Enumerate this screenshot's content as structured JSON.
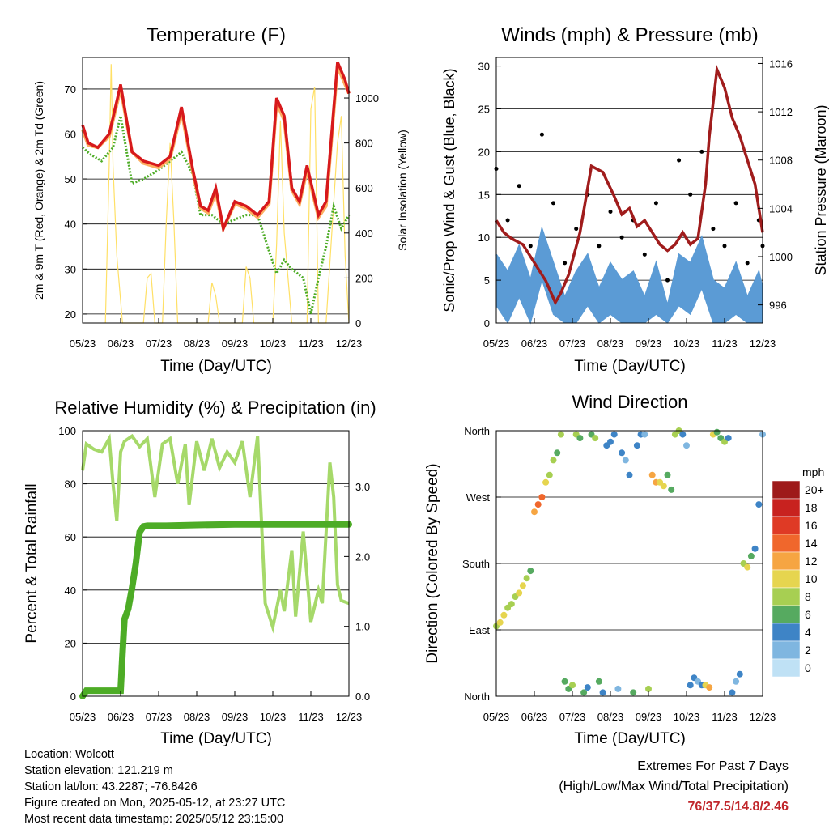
{
  "footer": {
    "location": "Location: Wolcott",
    "elevation": "Station elevation: 121.219 m",
    "latlon": "Station lat/lon: 43.2287; -76.8426",
    "created": "Figure created on Mon, 2025-05-12, at 23:27 UTC",
    "recent": "Most recent data timestamp: 2025/05/12 23:15:00",
    "extremes_title": "Extremes For Past 7 Days",
    "extremes_subtitle": "(High/Low/Max Wind/Total Precipitation)",
    "extremes_values": "76/37.5/14.8/2.46"
  },
  "colors": {
    "temp_red": "#d7191c",
    "temp_orange": "#fdae61",
    "dewpoint": "#4dac26",
    "solar": "#ffe066",
    "wind": "#5b9bd5",
    "gust": "#000000",
    "pressure": "#a01c1c",
    "rh": "#a6d96a",
    "precip": "#4dac26"
  },
  "chart_data": [
    {
      "type": "line",
      "title": "Temperature (F)",
      "xlabel": "Time (Day/UTC)",
      "ylabel": "2m & 9m T (Red, Orange) & 2m Td (Green)",
      "y2label": "Solar Insolation (Yellow)",
      "x_ticks": [
        "05/23",
        "06/23",
        "07/23",
        "08/23",
        "09/23",
        "10/23",
        "11/23",
        "12/23"
      ],
      "ylim": [
        18,
        77
      ],
      "y_ticks": [
        20,
        30,
        40,
        50,
        60,
        70
      ],
      "y2lim": [
        0,
        1180
      ],
      "y2_ticks": [
        0,
        200,
        400,
        600,
        800,
        1000
      ],
      "grid": true,
      "series": [
        {
          "name": "2m T",
          "axis": "left",
          "x": [
            0,
            0.15,
            0.4,
            0.7,
            1.0,
            1.3,
            1.6,
            2.0,
            2.3,
            2.6,
            2.9,
            3.1,
            3.3,
            3.5,
            3.7,
            4.0,
            4.3,
            4.6,
            4.9,
            5.1,
            5.3,
            5.5,
            5.7,
            5.9,
            6.2,
            6.4,
            6.7,
            6.9,
            7.0
          ],
          "y": [
            62,
            58,
            57,
            60,
            71,
            56,
            54,
            53,
            55,
            66,
            52,
            44,
            43,
            48,
            39,
            45,
            44,
            42,
            45,
            68,
            64,
            48,
            45,
            53,
            42,
            45,
            76,
            72,
            69
          ]
        },
        {
          "name": "9m T",
          "axis": "left",
          "x": [
            0,
            0.15,
            0.4,
            0.7,
            1.0,
            1.3,
            1.6,
            2.0,
            2.3,
            2.6,
            2.9,
            3.1,
            3.3,
            3.5,
            3.7,
            4.0,
            4.3,
            4.6,
            4.9,
            5.1,
            5.3,
            5.5,
            5.7,
            5.9,
            6.2,
            6.4,
            6.7,
            6.9,
            7.0
          ],
          "y": [
            61,
            57.5,
            57,
            59.5,
            70,
            56,
            53.5,
            52.5,
            54.5,
            65,
            51.5,
            43.5,
            42.5,
            47,
            39,
            44.5,
            43.5,
            41.5,
            44.5,
            67,
            63,
            47.5,
            44.5,
            52,
            41.5,
            44,
            75,
            71,
            69
          ]
        },
        {
          "name": "2m Td",
          "axis": "left",
          "x": [
            0,
            0.2,
            0.5,
            0.8,
            1.0,
            1.3,
            1.6,
            2.0,
            2.3,
            2.6,
            2.9,
            3.1,
            3.4,
            3.7,
            4.0,
            4.3,
            4.6,
            4.9,
            5.1,
            5.3,
            5.5,
            5.8,
            6.0,
            6.2,
            6.4,
            6.6,
            6.8,
            7.0
          ],
          "y": [
            57,
            55.5,
            54,
            57,
            64,
            49,
            50,
            52,
            54,
            56,
            51,
            42,
            42,
            40,
            41,
            42,
            42,
            34,
            29,
            32,
            30,
            28,
            20,
            28,
            35,
            44,
            39,
            42
          ]
        },
        {
          "name": "Solar Insolation",
          "axis": "right",
          "x": [
            0.6,
            0.7,
            0.75,
            0.8,
            0.9,
            1.05,
            1.6,
            1.7,
            1.8,
            1.9,
            2.1,
            2.2,
            2.3,
            2.4,
            2.5,
            2.7,
            3.3,
            3.4,
            3.5,
            3.6,
            3.75,
            4.2,
            4.3,
            4.4,
            4.5,
            4.6,
            5.0,
            5.1,
            5.2,
            5.3,
            5.5,
            5.9,
            6.0,
            6.1,
            6.2,
            6.4,
            6.7,
            6.8,
            6.9,
            7.0
          ],
          "y": [
            0,
            700,
            1150,
            700,
            300,
            0,
            0,
            200,
            220,
            0,
            0,
            450,
            800,
            450,
            0,
            0,
            0,
            180,
            120,
            0,
            0,
            0,
            250,
            200,
            0,
            0,
            0,
            350,
            900,
            400,
            0,
            0,
            950,
            1050,
            0,
            0,
            800,
            920,
            300,
            0
          ]
        }
      ]
    },
    {
      "type": "line",
      "title": "Winds (mph) & Pressure (mb)",
      "xlabel": "Time (Day/UTC)",
      "ylabel": "Sonic/Prop Wind & Gust (Blue, Black)",
      "y2label": "Station Pressure (Maroon)",
      "x_ticks": [
        "05/23",
        "06/23",
        "07/23",
        "08/23",
        "09/23",
        "10/23",
        "11/23",
        "12/23"
      ],
      "ylim": [
        0,
        31
      ],
      "y_ticks": [
        0,
        5,
        10,
        15,
        20,
        25,
        30
      ],
      "y2lim": [
        994.5,
        1016.5
      ],
      "y2_ticks": [
        996,
        1000,
        1004,
        1008,
        1012,
        1016
      ],
      "grid": true,
      "series": [
        {
          "name": "Wind",
          "axis": "left",
          "x": [
            0,
            0.3,
            0.6,
            0.9,
            1.2,
            1.5,
            1.8,
            2.1,
            2.4,
            2.7,
            3.0,
            3.3,
            3.6,
            3.9,
            4.2,
            4.5,
            4.8,
            5.1,
            5.4,
            5.7,
            6.0,
            6.3,
            6.6,
            6.9,
            7.0
          ],
          "y": [
            8,
            6,
            9,
            5,
            11,
            7,
            3,
            6,
            8,
            4,
            7,
            5,
            6,
            3,
            7,
            2,
            8,
            7,
            10,
            5,
            4,
            7,
            3,
            6,
            4
          ]
        },
        {
          "name": "Gust",
          "axis": "left",
          "x": [
            0,
            0.3,
            0.6,
            0.9,
            1.2,
            1.5,
            1.8,
            2.1,
            2.4,
            2.7,
            3.0,
            3.3,
            3.6,
            3.9,
            4.2,
            4.5,
            4.8,
            5.1,
            5.4,
            5.7,
            6.0,
            6.3,
            6.6,
            6.9,
            7.0
          ],
          "y": [
            18,
            12,
            16,
            9,
            22,
            14,
            7,
            11,
            15,
            9,
            13,
            10,
            12,
            8,
            14,
            5,
            19,
            15,
            20,
            11,
            9,
            14,
            7,
            12,
            9
          ]
        },
        {
          "name": "Station Pressure",
          "axis": "right",
          "x": [
            0,
            0.2,
            0.4,
            0.7,
            1.0,
            1.3,
            1.55,
            1.7,
            1.9,
            2.2,
            2.5,
            2.8,
            3.1,
            3.3,
            3.5,
            3.7,
            3.9,
            4.1,
            4.3,
            4.5,
            4.7,
            4.9,
            5.1,
            5.3,
            5.5,
            5.6,
            5.8,
            6.0,
            6.2,
            6.4,
            6.6,
            6.8,
            7.0
          ],
          "y": [
            1003,
            1002,
            1001.5,
            1001,
            999.5,
            998,
            996.2,
            997,
            998.5,
            1002,
            1007.5,
            1007,
            1005,
            1003.5,
            1004,
            1002.5,
            1003,
            1002,
            1001,
            1000.5,
            1001,
            1002,
            1001,
            1001.5,
            1006,
            1010,
            1015.5,
            1014,
            1011.5,
            1010,
            1008,
            1006,
            1002
          ]
        }
      ]
    },
    {
      "type": "line",
      "title": "Relative Humidity (%) & Precipitation (in)",
      "xlabel": "Time (Day/UTC)",
      "ylabel": "Percent & Total Rainfall",
      "x_ticks": [
        "05/23",
        "06/23",
        "07/23",
        "08/23",
        "09/23",
        "10/23",
        "11/23",
        "12/23"
      ],
      "ylim": [
        0,
        100
      ],
      "y_ticks": [
        0,
        20,
        40,
        60,
        80,
        100
      ],
      "y2lim": [
        0,
        3.8
      ],
      "y2_ticks": [
        "0.0",
        "1.0",
        "2.0",
        "3.0"
      ],
      "grid": true,
      "series": [
        {
          "name": "Relative Humidity",
          "axis": "left",
          "x": [
            0,
            0.1,
            0.3,
            0.5,
            0.7,
            0.8,
            0.9,
            1.0,
            1.1,
            1.3,
            1.5,
            1.7,
            1.9,
            2.1,
            2.3,
            2.5,
            2.7,
            2.8,
            3.0,
            3.2,
            3.4,
            3.6,
            3.8,
            4.0,
            4.2,
            4.4,
            4.6,
            4.8,
            5.0,
            5.2,
            5.3,
            5.5,
            5.6,
            5.8,
            5.9,
            6.0,
            6.2,
            6.3,
            6.5,
            6.6,
            6.7,
            6.8,
            7.0
          ],
          "y": [
            85,
            95,
            93,
            92,
            97,
            80,
            66,
            92,
            96,
            98,
            94,
            97,
            75,
            95,
            97,
            80,
            95,
            72,
            96,
            85,
            97,
            86,
            92,
            88,
            96,
            75,
            98,
            35,
            26,
            40,
            32,
            55,
            30,
            62,
            45,
            28,
            40,
            35,
            88,
            75,
            42,
            36,
            35
          ]
        },
        {
          "name": "Total Precipitation",
          "axis": "right",
          "x": [
            0,
            0.1,
            1.0,
            1.05,
            1.1,
            1.2,
            1.3,
            1.4,
            1.5,
            1.6,
            1.7,
            2.2,
            3.0,
            4.0,
            5.0,
            6.0,
            7.0
          ],
          "y": [
            0,
            0.08,
            0.08,
            0.6,
            1.1,
            1.25,
            1.55,
            1.9,
            2.35,
            2.43,
            2.44,
            2.44,
            2.45,
            2.46,
            2.46,
            2.46,
            2.46
          ]
        }
      ]
    },
    {
      "type": "scatter",
      "title": "Wind Direction",
      "xlabel": "Time (Day/UTC)",
      "ylabel": "Direction (Colored By Speed)",
      "x_ticks": [
        "05/23",
        "06/23",
        "07/23",
        "08/23",
        "09/23",
        "10/23",
        "11/23",
        "12/23"
      ],
      "y_ticks": [
        "North",
        "East",
        "South",
        "West",
        "North"
      ],
      "ylim": [
        0,
        360
      ],
      "grid": true,
      "colorbar": {
        "unit": "mph",
        "labels": [
          "20+",
          "18",
          "16",
          "14",
          "12",
          "10",
          "8",
          "6",
          "4",
          "2",
          "0"
        ],
        "colors": [
          "#9e1a1a",
          "#c8221f",
          "#df3a25",
          "#f0672c",
          "#f6a542",
          "#e6d54f",
          "#a7cf52",
          "#56aa60",
          "#3e84c6",
          "#7fb6e0",
          "#bfe1f5"
        ]
      },
      "series": [
        {
          "name": "Direction",
          "x": [
            0.0,
            0.1,
            0.2,
            0.3,
            0.4,
            0.5,
            0.6,
            0.7,
            0.8,
            0.9,
            1.0,
            1.1,
            1.2,
            1.3,
            1.4,
            1.5,
            1.6,
            1.7,
            1.8,
            1.9,
            2.0,
            2.1,
            2.2,
            2.3,
            2.4,
            2.5,
            2.6,
            2.7,
            2.8,
            2.9,
            3.0,
            3.1,
            3.2,
            3.3,
            3.4,
            3.5,
            3.6,
            3.7,
            3.8,
            3.9,
            4.0,
            4.1,
            4.2,
            4.3,
            4.4,
            4.5,
            4.6,
            4.7,
            4.8,
            4.9,
            5.0,
            5.1,
            5.2,
            5.3,
            5.4,
            5.5,
            5.6,
            5.7,
            5.8,
            5.9,
            6.0,
            6.1,
            6.2,
            6.3,
            6.4,
            6.5,
            6.6,
            6.7,
            6.8,
            6.9,
            7.0
          ],
          "y": [
            95,
            100,
            110,
            120,
            125,
            135,
            140,
            150,
            160,
            170,
            250,
            260,
            270,
            290,
            300,
            320,
            330,
            355,
            20,
            10,
            15,
            355,
            350,
            5,
            12,
            355,
            350,
            20,
            5,
            340,
            345,
            355,
            10,
            330,
            320,
            300,
            5,
            340,
            355,
            355,
            10,
            300,
            290,
            290,
            285,
            300,
            280,
            355,
            360,
            355,
            340,
            15,
            25,
            20,
            15,
            15,
            12,
            355,
            358,
            350,
            345,
            350,
            5,
            20,
            30,
            180,
            175,
            190,
            200,
            260,
            355
          ],
          "speed": [
            8,
            9,
            9,
            8,
            7,
            8,
            10,
            9,
            7,
            6,
            12,
            14,
            13,
            10,
            8,
            7,
            6,
            7,
            5,
            6,
            8,
            7,
            6,
            5,
            4,
            6,
            7,
            5,
            3,
            4,
            3,
            4,
            2,
            3,
            2,
            4,
            5,
            4,
            3,
            2,
            7,
            11,
            12,
            10,
            9,
            6,
            5,
            8,
            7,
            3,
            2,
            3,
            4,
            2,
            3,
            10,
            12,
            9,
            6,
            5,
            7,
            4,
            3,
            2,
            4,
            8,
            10,
            6,
            4,
            3,
            2
          ]
        }
      ]
    }
  ]
}
